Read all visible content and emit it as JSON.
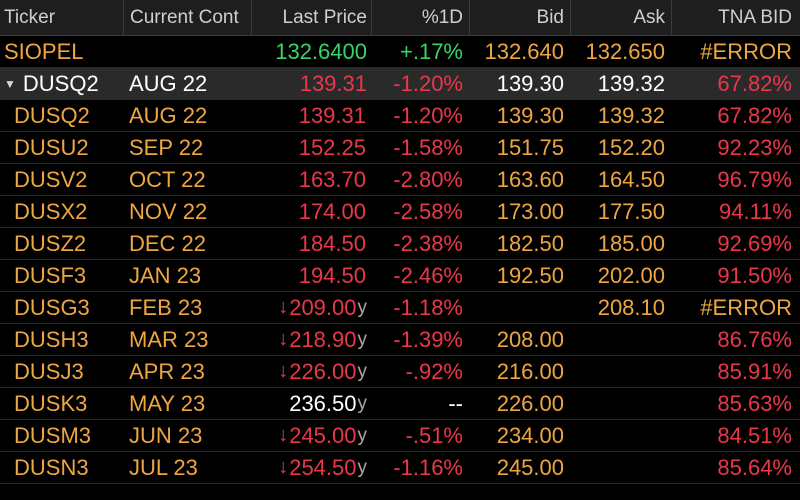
{
  "columns": {
    "ticker": "Ticker",
    "contract": "Current Cont",
    "last": "Last Price",
    "pct": "%1D",
    "bid": "Bid",
    "ask": "Ask",
    "tna": "TNA BID"
  },
  "summary": {
    "ticker": "SIOPEL",
    "contract": "",
    "last": "132.6400",
    "pct": "+.17%",
    "bid": "132.640",
    "ask": "132.650",
    "tna": "#ERROR"
  },
  "group": {
    "toggle_icon": "triangle-down-icon",
    "ticker": "DUSQ2",
    "contract": "AUG 22",
    "last": "139.31",
    "pct": "-1.20%",
    "bid": "139.30",
    "ask": "139.32",
    "tna": "67.82%"
  },
  "rows": [
    {
      "ticker": "DUSQ2",
      "contract": "AUG 22",
      "arrow": "",
      "last": "139.31",
      "suffix": "",
      "pct": "-1.20%",
      "bid": "139.30",
      "ask": "139.32",
      "tna": "67.82%",
      "last_color": "red",
      "pct_color": "red",
      "tna_color": "red"
    },
    {
      "ticker": "DUSU2",
      "contract": "SEP 22",
      "arrow": "",
      "last": "152.25",
      "suffix": "",
      "pct": "-1.58%",
      "bid": "151.75",
      "ask": "152.20",
      "tna": "92.23%",
      "last_color": "red",
      "pct_color": "red",
      "tna_color": "red"
    },
    {
      "ticker": "DUSV2",
      "contract": "OCT 22",
      "arrow": "",
      "last": "163.70",
      "suffix": "",
      "pct": "-2.80%",
      "bid": "163.60",
      "ask": "164.50",
      "tna": "96.79%",
      "last_color": "red",
      "pct_color": "red",
      "tna_color": "red"
    },
    {
      "ticker": "DUSX2",
      "contract": "NOV 22",
      "arrow": "",
      "last": "174.00",
      "suffix": "",
      "pct": "-2.58%",
      "bid": "173.00",
      "ask": "177.50",
      "tna": "94.11%",
      "last_color": "red",
      "pct_color": "red",
      "tna_color": "red"
    },
    {
      "ticker": "DUSZ2",
      "contract": "DEC 22",
      "arrow": "",
      "last": "184.50",
      "suffix": "",
      "pct": "-2.38%",
      "bid": "182.50",
      "ask": "185.00",
      "tna": "92.69%",
      "last_color": "red",
      "pct_color": "red",
      "tna_color": "red"
    },
    {
      "ticker": "DUSF3",
      "contract": "JAN 23",
      "arrow": "",
      "last": "194.50",
      "suffix": "",
      "pct": "-2.46%",
      "bid": "192.50",
      "ask": "202.00",
      "tna": "91.50%",
      "last_color": "red",
      "pct_color": "red",
      "tna_color": "red"
    },
    {
      "ticker": "DUSG3",
      "contract": "FEB 23",
      "arrow": "↓",
      "last": "209.00",
      "suffix": "y",
      "pct": "-1.18%",
      "bid": "",
      "ask": "208.10",
      "tna": "#ERROR",
      "last_color": "red",
      "pct_color": "red",
      "tna_color": "orange"
    },
    {
      "ticker": "DUSH3",
      "contract": "MAR 23",
      "arrow": "↓",
      "last": "218.90",
      "suffix": "y",
      "pct": "-1.39%",
      "bid": "208.00",
      "ask": "",
      "tna": "86.76%",
      "last_color": "red",
      "pct_color": "red",
      "tna_color": "red"
    },
    {
      "ticker": "DUSJ3",
      "contract": "APR 23",
      "arrow": "↓",
      "last": "226.00",
      "suffix": "y",
      "pct": "-.92%",
      "bid": "216.00",
      "ask": "",
      "tna": "85.91%",
      "last_color": "red",
      "pct_color": "red",
      "tna_color": "red"
    },
    {
      "ticker": "DUSK3",
      "contract": "MAY 23",
      "arrow": "",
      "last": "236.50",
      "suffix": "y",
      "pct": "--",
      "bid": "226.00",
      "ask": "",
      "tna": "85.63%",
      "last_color": "white",
      "pct_color": "white",
      "tna_color": "red"
    },
    {
      "ticker": "DUSM3",
      "contract": "JUN 23",
      "arrow": "↓",
      "last": "245.00",
      "suffix": "y",
      "pct": "-.51%",
      "bid": "234.00",
      "ask": "",
      "tna": "84.51%",
      "last_color": "red",
      "pct_color": "red",
      "tna_color": "red"
    },
    {
      "ticker": "DUSN3",
      "contract": "JUL 23",
      "arrow": "↓",
      "last": "254.50",
      "suffix": "y",
      "pct": "-1.16%",
      "bid": "245.00",
      "ask": "",
      "tna": "85.64%",
      "last_color": "red",
      "pct_color": "red",
      "tna_color": "red"
    }
  ],
  "colors": {
    "orange": "#f0a640",
    "red": "#e8384a",
    "green": "#38d36a",
    "white": "#ffffff",
    "background": "#000000",
    "header_bg": "#1e1e1e",
    "group_bg": "#2a2a2a"
  }
}
